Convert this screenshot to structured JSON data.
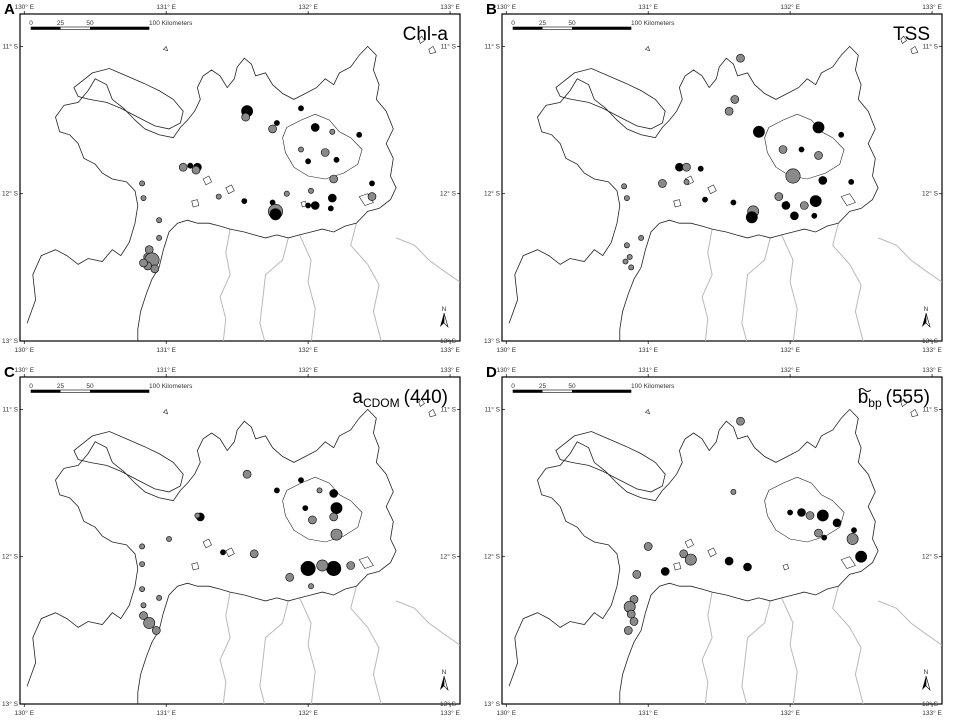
{
  "panels": [
    {
      "letter": "A",
      "title": "Chl-a",
      "stations": [
        {
          "lon": 131.57,
          "lat": -11.44,
          "v": 2,
          "t": "k"
        },
        {
          "lon": 131.56,
          "lat": -11.48,
          "v": 1,
          "t": "g"
        },
        {
          "lon": 131.75,
          "lat": -11.56,
          "v": 1,
          "t": "g"
        },
        {
          "lon": 131.78,
          "lat": -11.52,
          "v": 0,
          "t": "k"
        },
        {
          "lon": 131.95,
          "lat": -11.42,
          "v": 0,
          "t": "k"
        },
        {
          "lon": 132.05,
          "lat": -11.55,
          "v": 1,
          "t": "k"
        },
        {
          "lon": 132.17,
          "lat": -11.58,
          "v": 0,
          "t": "g"
        },
        {
          "lon": 132.36,
          "lat": -11.6,
          "v": 0,
          "t": "k"
        },
        {
          "lon": 131.95,
          "lat": -11.7,
          "v": 0,
          "t": "g"
        },
        {
          "lon": 132.12,
          "lat": -11.72,
          "v": 1,
          "t": "g"
        },
        {
          "lon": 132.0,
          "lat": -11.78,
          "v": 0,
          "t": "k"
        },
        {
          "lon": 132.2,
          "lat": -11.77,
          "v": 0,
          "t": "k"
        },
        {
          "lon": 132.18,
          "lat": -11.9,
          "v": 1,
          "t": "g"
        },
        {
          "lon": 132.02,
          "lat": -11.98,
          "v": 0,
          "t": "g"
        },
        {
          "lon": 132.45,
          "lat": -11.93,
          "v": 0,
          "t": "k"
        },
        {
          "lon": 132.45,
          "lat": -12.02,
          "v": 1,
          "t": "g"
        },
        {
          "lon": 131.22,
          "lat": -11.82,
          "v": 1,
          "t": "k"
        },
        {
          "lon": 131.17,
          "lat": -11.81,
          "v": 0,
          "t": "k"
        },
        {
          "lon": 131.21,
          "lat": -11.84,
          "v": 1,
          "t": "g"
        },
        {
          "lon": 131.12,
          "lat": -11.82,
          "v": 1,
          "t": "g"
        },
        {
          "lon": 131.55,
          "lat": -12.05,
          "v": 0,
          "t": "k"
        },
        {
          "lon": 131.37,
          "lat": -12.02,
          "v": 0,
          "t": "g"
        },
        {
          "lon": 131.75,
          "lat": -12.06,
          "v": 0,
          "t": "k"
        },
        {
          "lon": 131.85,
          "lat": -12.0,
          "v": 0,
          "t": "g"
        },
        {
          "lon": 132.17,
          "lat": -12.03,
          "v": 1,
          "t": "k"
        },
        {
          "lon": 132.0,
          "lat": -12.08,
          "v": 0,
          "t": "k"
        },
        {
          "lon": 132.05,
          "lat": -12.08,
          "v": 1,
          "t": "k"
        },
        {
          "lon": 132.16,
          "lat": -12.1,
          "v": 0,
          "t": "k"
        },
        {
          "lon": 131.77,
          "lat": -12.12,
          "v": 3,
          "t": "g"
        },
        {
          "lon": 131.77,
          "lat": -12.14,
          "v": 2,
          "t": "k"
        },
        {
          "lon": 130.83,
          "lat": -11.93,
          "v": 0,
          "t": "g"
        },
        {
          "lon": 130.84,
          "lat": -12.03,
          "v": 0,
          "t": "g"
        },
        {
          "lon": 130.95,
          "lat": -12.18,
          "v": 0,
          "t": "g"
        },
        {
          "lon": 130.95,
          "lat": -12.3,
          "v": 0,
          "t": "g"
        },
        {
          "lon": 130.88,
          "lat": -12.38,
          "v": 1,
          "t": "g"
        },
        {
          "lon": 130.87,
          "lat": -12.43,
          "v": 1,
          "t": "g"
        },
        {
          "lon": 130.9,
          "lat": -12.45,
          "v": 3,
          "t": "g"
        },
        {
          "lon": 130.87,
          "lat": -12.49,
          "v": 1,
          "t": "g"
        },
        {
          "lon": 130.84,
          "lat": -12.47,
          "v": 1,
          "t": "g"
        },
        {
          "lon": 130.92,
          "lat": -12.51,
          "v": 1,
          "t": "g"
        }
      ]
    },
    {
      "letter": "B",
      "title": "TSS",
      "stations": [
        {
          "lon": 131.65,
          "lat": -11.08,
          "v": 1,
          "t": "g"
        },
        {
          "lon": 131.61,
          "lat": -11.36,
          "v": 1,
          "t": "g"
        },
        {
          "lon": 131.57,
          "lat": -11.44,
          "v": 1,
          "t": "g"
        },
        {
          "lon": 131.78,
          "lat": -11.58,
          "v": 2,
          "t": "k"
        },
        {
          "lon": 132.2,
          "lat": -11.55,
          "v": 2,
          "t": "k"
        },
        {
          "lon": 132.36,
          "lat": -11.6,
          "v": 0,
          "t": "k"
        },
        {
          "lon": 131.95,
          "lat": -11.7,
          "v": 1,
          "t": "g"
        },
        {
          "lon": 132.08,
          "lat": -11.7,
          "v": 0,
          "t": "k"
        },
        {
          "lon": 132.2,
          "lat": -11.74,
          "v": 1,
          "t": "g"
        },
        {
          "lon": 132.02,
          "lat": -11.88,
          "v": 3,
          "t": "g"
        },
        {
          "lon": 132.23,
          "lat": -11.91,
          "v": 1,
          "t": "k"
        },
        {
          "lon": 132.43,
          "lat": -11.92,
          "v": 0,
          "t": "k"
        },
        {
          "lon": 131.22,
          "lat": -11.82,
          "v": 1,
          "t": "k"
        },
        {
          "lon": 131.27,
          "lat": -11.82,
          "v": 1,
          "t": "g"
        },
        {
          "lon": 131.37,
          "lat": -11.83,
          "v": 0,
          "t": "k"
        },
        {
          "lon": 131.27,
          "lat": -11.92,
          "v": 0,
          "t": "g"
        },
        {
          "lon": 131.1,
          "lat": -11.93,
          "v": 1,
          "t": "g"
        },
        {
          "lon": 131.4,
          "lat": -12.04,
          "v": 0,
          "t": "k"
        },
        {
          "lon": 131.6,
          "lat": -12.06,
          "v": 0,
          "t": "k"
        },
        {
          "lon": 131.92,
          "lat": -12.02,
          "v": 1,
          "t": "g"
        },
        {
          "lon": 131.97,
          "lat": -12.08,
          "v": 1,
          "t": "k"
        },
        {
          "lon": 132.1,
          "lat": -12.08,
          "v": 1,
          "t": "g"
        },
        {
          "lon": 132.18,
          "lat": -12.05,
          "v": 2,
          "t": "k"
        },
        {
          "lon": 131.74,
          "lat": -12.12,
          "v": 2,
          "t": "g"
        },
        {
          "lon": 131.73,
          "lat": -12.16,
          "v": 2,
          "t": "k"
        },
        {
          "lon": 132.03,
          "lat": -12.15,
          "v": 1,
          "t": "k"
        },
        {
          "lon": 132.17,
          "lat": -12.15,
          "v": 0,
          "t": "k"
        },
        {
          "lon": 130.83,
          "lat": -11.95,
          "v": 0,
          "t": "g"
        },
        {
          "lon": 130.85,
          "lat": -12.03,
          "v": 0,
          "t": "g"
        },
        {
          "lon": 130.95,
          "lat": -12.3,
          "v": 0,
          "t": "g"
        },
        {
          "lon": 130.85,
          "lat": -12.35,
          "v": 0,
          "t": "g"
        },
        {
          "lon": 130.87,
          "lat": -12.43,
          "v": 0,
          "t": "g"
        },
        {
          "lon": 130.84,
          "lat": -12.46,
          "v": 0,
          "t": "g"
        },
        {
          "lon": 130.88,
          "lat": -12.5,
          "v": 0,
          "t": "g"
        }
      ]
    },
    {
      "letter": "C",
      "title_main": "a",
      "title_sub": "CDOM",
      "title_tail": "(440)",
      "stations": [
        {
          "lon": 131.57,
          "lat": -11.44,
          "v": 1,
          "t": "g"
        },
        {
          "lon": 131.78,
          "lat": -11.55,
          "v": 0,
          "t": "k"
        },
        {
          "lon": 131.95,
          "lat": -11.48,
          "v": 0,
          "t": "k"
        },
        {
          "lon": 132.08,
          "lat": -11.55,
          "v": 0,
          "t": "g"
        },
        {
          "lon": 132.18,
          "lat": -11.57,
          "v": 1,
          "t": "k"
        },
        {
          "lon": 131.98,
          "lat": -11.67,
          "v": 0,
          "t": "k"
        },
        {
          "lon": 132.2,
          "lat": -11.67,
          "v": 2,
          "t": "k"
        },
        {
          "lon": 132.03,
          "lat": -11.75,
          "v": 1,
          "t": "g"
        },
        {
          "lon": 132.18,
          "lat": -11.73,
          "v": 1,
          "t": "g"
        },
        {
          "lon": 132.2,
          "lat": -11.85,
          "v": 2,
          "t": "g"
        },
        {
          "lon": 131.24,
          "lat": -11.73,
          "v": 1,
          "t": "k"
        },
        {
          "lon": 131.22,
          "lat": -11.72,
          "v": 0,
          "t": "g"
        },
        {
          "lon": 131.02,
          "lat": -11.88,
          "v": 0,
          "t": "g"
        },
        {
          "lon": 131.4,
          "lat": -11.97,
          "v": 0,
          "t": "k"
        },
        {
          "lon": 131.62,
          "lat": -11.98,
          "v": 1,
          "t": "g"
        },
        {
          "lon": 132.0,
          "lat": -12.08,
          "v": 3,
          "t": "k"
        },
        {
          "lon": 132.18,
          "lat": -12.08,
          "v": 3,
          "t": "k"
        },
        {
          "lon": 132.1,
          "lat": -12.06,
          "v": 2,
          "t": "g"
        },
        {
          "lon": 132.3,
          "lat": -12.06,
          "v": 1,
          "t": "g"
        },
        {
          "lon": 131.87,
          "lat": -12.14,
          "v": 1,
          "t": "g"
        },
        {
          "lon": 132.02,
          "lat": -12.2,
          "v": 0,
          "t": "g"
        },
        {
          "lon": 130.83,
          "lat": -11.93,
          "v": 0,
          "t": "g"
        },
        {
          "lon": 130.83,
          "lat": -12.05,
          "v": 0,
          "t": "g"
        },
        {
          "lon": 130.83,
          "lat": -12.22,
          "v": 0,
          "t": "g"
        },
        {
          "lon": 130.95,
          "lat": -12.28,
          "v": 0,
          "t": "g"
        },
        {
          "lon": 130.84,
          "lat": -12.33,
          "v": 0,
          "t": "g"
        },
        {
          "lon": 130.84,
          "lat": -12.4,
          "v": 1,
          "t": "g"
        },
        {
          "lon": 130.88,
          "lat": -12.45,
          "v": 2,
          "t": "g"
        },
        {
          "lon": 130.93,
          "lat": -12.5,
          "v": 1,
          "t": "g"
        }
      ]
    },
    {
      "letter": "D",
      "title_main": "b",
      "title_sub": "bp",
      "title_tail": "(555)",
      "stations": [
        {
          "lon": 131.65,
          "lat": -11.08,
          "v": 1,
          "t": "g"
        },
        {
          "lon": 131.6,
          "lat": -11.56,
          "v": 0,
          "t": "g"
        },
        {
          "lon": 132.0,
          "lat": -11.7,
          "v": 0,
          "t": "k"
        },
        {
          "lon": 132.08,
          "lat": -11.7,
          "v": 1,
          "t": "k"
        },
        {
          "lon": 132.14,
          "lat": -11.72,
          "v": 1,
          "t": "g"
        },
        {
          "lon": 132.23,
          "lat": -11.72,
          "v": 2,
          "t": "k"
        },
        {
          "lon": 132.33,
          "lat": -11.77,
          "v": 1,
          "t": "k"
        },
        {
          "lon": 132.2,
          "lat": -11.84,
          "v": 1,
          "t": "g"
        },
        {
          "lon": 132.24,
          "lat": -11.87,
          "v": 0,
          "t": "k"
        },
        {
          "lon": 132.45,
          "lat": -11.82,
          "v": 0,
          "t": "k"
        },
        {
          "lon": 132.44,
          "lat": -11.88,
          "v": 2,
          "t": "g"
        },
        {
          "lon": 132.5,
          "lat": -12.0,
          "v": 2,
          "t": "k"
        },
        {
          "lon": 131.0,
          "lat": -11.93,
          "v": 1,
          "t": "g"
        },
        {
          "lon": 131.25,
          "lat": -11.98,
          "v": 1,
          "t": "g"
        },
        {
          "lon": 131.3,
          "lat": -12.02,
          "v": 2,
          "t": "g"
        },
        {
          "lon": 131.12,
          "lat": -12.1,
          "v": 1,
          "t": "k"
        },
        {
          "lon": 131.57,
          "lat": -12.03,
          "v": 1,
          "t": "k"
        },
        {
          "lon": 131.7,
          "lat": -12.07,
          "v": 1,
          "t": "k"
        },
        {
          "lon": 130.92,
          "lat": -12.12,
          "v": 1,
          "t": "g"
        },
        {
          "lon": 130.9,
          "lat": -12.29,
          "v": 1,
          "t": "g"
        },
        {
          "lon": 130.87,
          "lat": -12.34,
          "v": 2,
          "t": "g"
        },
        {
          "lon": 130.88,
          "lat": -12.39,
          "v": 1,
          "t": "g"
        },
        {
          "lon": 130.9,
          "lat": -12.44,
          "v": 1,
          "t": "g"
        },
        {
          "lon": 130.86,
          "lat": -12.5,
          "v": 1,
          "t": "g"
        }
      ]
    }
  ],
  "lon_ticks": [
    "130° E",
    "131° E",
    "132° E",
    "133° E"
  ],
  "lat_ticks": [
    "11° S",
    "12° S",
    "13° S"
  ],
  "scale_ticks": [
    "0",
    "25",
    "50",
    "100 Kilometers"
  ],
  "north_label": "N",
  "colors": {
    "grey_fill": "#8a8a8a",
    "black_fill": "#000000",
    "river": "#b9b9b9",
    "coast": "#222222"
  }
}
